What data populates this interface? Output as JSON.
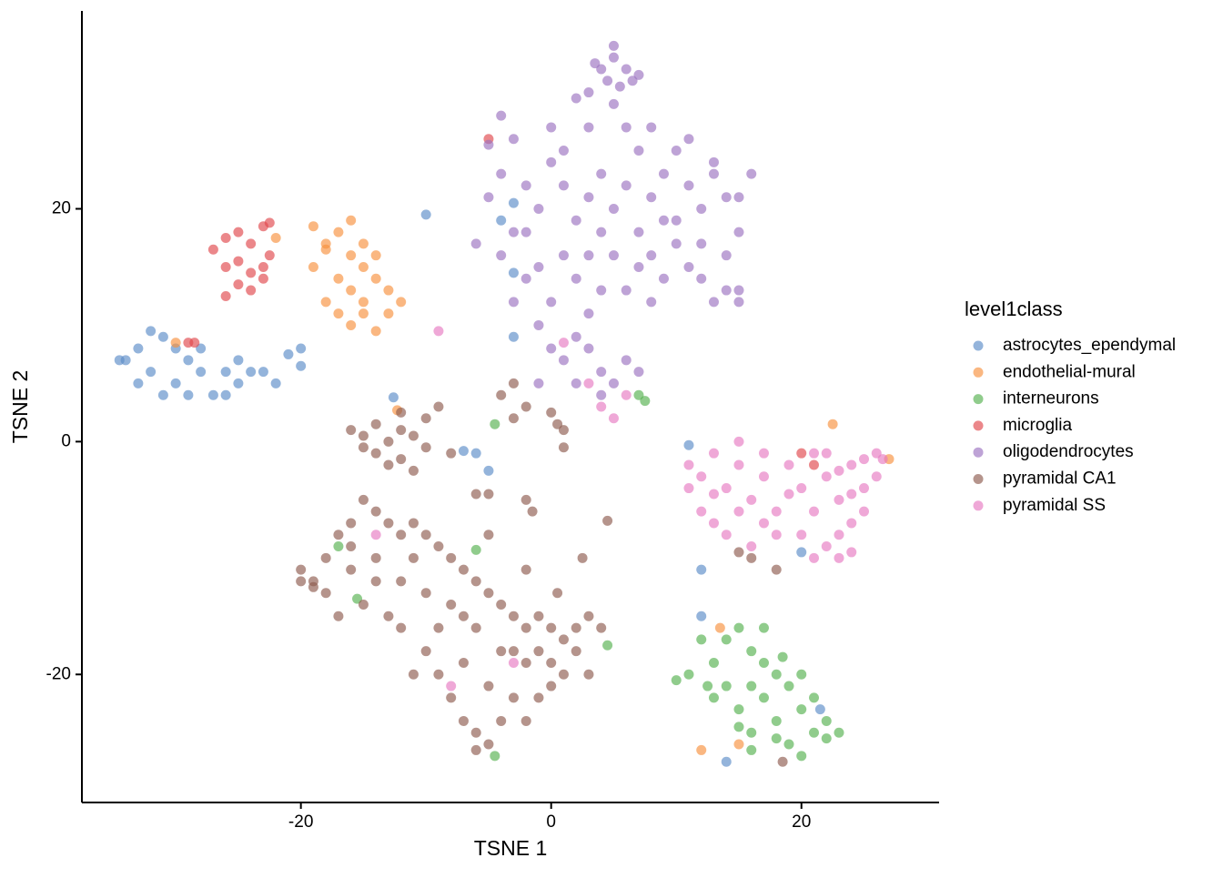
{
  "chart_data": {
    "type": "scatter",
    "xlabel": "TSNE 1",
    "ylabel": "TSNE 2",
    "legend_title": "level1class",
    "legend": "right",
    "grid": false,
    "xlim": [
      -37.5,
      31
    ],
    "ylim": [
      -31,
      37
    ],
    "xticks": [
      -20,
      0,
      20
    ],
    "yticks": [
      -20,
      0,
      20
    ],
    "series": [
      {
        "name": "astrocytes_ependymal",
        "color": "#5b8cc8",
        "x": [
          -34,
          -33,
          -32,
          -31,
          -30,
          -29,
          -28,
          -27,
          -26,
          -25,
          -33,
          -31,
          -30,
          -29,
          -28,
          -26,
          -24,
          -23,
          -25,
          -32,
          -34.5,
          -22,
          -20,
          -21,
          -20,
          -12.6,
          -10,
          -4,
          -3,
          -3,
          -3,
          -7,
          -5,
          -6,
          12,
          11,
          20,
          14,
          21.5,
          12
        ],
        "values": [
          7,
          8,
          6,
          9,
          5,
          7,
          6,
          4,
          6,
          5,
          5,
          4,
          8,
          4,
          8,
          4,
          6,
          6,
          7,
          9.5,
          7,
          5,
          8,
          7.5,
          6.5,
          3.8,
          19.5,
          19,
          20.5,
          14.5,
          9,
          -0.8,
          -2.5,
          -1,
          -11,
          -0.3,
          -9.5,
          -27.5,
          -23,
          -15
        ]
      },
      {
        "name": "endothelial-mural",
        "color": "#f7913d",
        "x": [
          -18,
          -17,
          -16,
          -15,
          -19,
          -17,
          -16,
          -15,
          -14,
          -13,
          -14,
          -18,
          -17,
          -16,
          -15,
          -13,
          -12,
          -16,
          -18,
          -22,
          -14,
          -30,
          -12.3,
          22.5,
          27,
          13.5,
          15,
          12,
          -19,
          -15
        ],
        "values": [
          17,
          18,
          19,
          17,
          15,
          14,
          13,
          15,
          14,
          13,
          16,
          12,
          11,
          10,
          12,
          11,
          12,
          16,
          16.5,
          17.5,
          9.5,
          8.5,
          2.7,
          1.5,
          -1.5,
          -16,
          -26,
          -26.5,
          18.5,
          11
        ]
      },
      {
        "name": "interneurons",
        "color": "#55b04f",
        "x": [
          12,
          13,
          14,
          15,
          16,
          17,
          18,
          19,
          20,
          21,
          22,
          14,
          15,
          16,
          17,
          18,
          19,
          20,
          21,
          11,
          10,
          13,
          15,
          16,
          18,
          20,
          22,
          17,
          18.5,
          23,
          12.5,
          16,
          7,
          7.5,
          -4.5,
          -4.5,
          -17,
          -6,
          4.5,
          -15.5
        ],
        "values": [
          -17,
          -19,
          -21,
          -23,
          -25,
          -22,
          -24,
          -26,
          -23,
          -25,
          -24,
          -17,
          -16,
          -18,
          -19,
          -20,
          -21,
          -20,
          -22,
          -20,
          -20.5,
          -22,
          -24.5,
          -26.5,
          -25.5,
          -27,
          -25.5,
          -16,
          -18.5,
          -25,
          -21,
          -21,
          4,
          3.5,
          1.5,
          -27,
          -9,
          -9.3,
          -17.5,
          -13.5
        ]
      },
      {
        "name": "microglia",
        "color": "#e0474c",
        "x": [
          -27,
          -26,
          -25,
          -24,
          -23,
          -22.5,
          -25,
          -24,
          -23,
          -26,
          -25,
          -24,
          -26,
          -23,
          -22.5,
          -29,
          -5,
          20,
          21,
          -28.5
        ],
        "values": [
          16.5,
          17.5,
          18,
          17,
          18.5,
          18.8,
          15.5,
          14.5,
          15,
          15,
          13.5,
          13,
          12.5,
          14,
          16,
          8.5,
          26,
          -1,
          -2,
          8.5
        ]
      },
      {
        "name": "oligodendrocytes",
        "color": "#9b72c0",
        "x": [
          4,
          5,
          6,
          4.5,
          5.5,
          3.5,
          6.5,
          5,
          3,
          7,
          5,
          -6,
          -5,
          -4,
          -3,
          -2,
          -1,
          0,
          1,
          2,
          3,
          4,
          5,
          6,
          7,
          8,
          9,
          10,
          11,
          12,
          13,
          14,
          15,
          -4,
          -2,
          0,
          1,
          2,
          3,
          4,
          5,
          6,
          7,
          8,
          9,
          10,
          11,
          12,
          13,
          14,
          15,
          14,
          -3,
          -1,
          0,
          1,
          2,
          3,
          4,
          5,
          6,
          7,
          2,
          4,
          -1,
          0,
          1,
          -3,
          -5,
          -4,
          3,
          2,
          8,
          10,
          7,
          13,
          16,
          15,
          11,
          9,
          4,
          -2,
          6,
          8,
          12,
          15,
          -1,
          3
        ],
        "values": [
          32,
          33,
          32,
          31,
          30.5,
          32.5,
          31,
          34,
          30,
          31.5,
          29,
          17,
          21,
          23,
          18,
          22,
          20,
          24,
          22,
          19,
          21,
          23,
          20,
          22,
          18,
          21,
          23,
          19,
          22,
          20,
          23,
          21,
          18,
          16,
          14,
          12,
          16,
          14,
          11,
          13,
          16,
          13,
          15,
          12,
          14,
          17,
          15,
          14,
          12,
          13,
          13,
          16,
          12,
          10,
          8,
          7,
          9,
          8,
          6,
          5,
          7,
          6,
          5,
          4,
          5,
          27,
          25,
          26,
          25.5,
          28,
          27,
          29.5,
          27,
          25,
          25,
          24,
          23,
          21,
          26,
          19,
          18,
          18,
          27,
          16,
          17,
          12,
          15,
          16
        ]
      },
      {
        "name": "pyramidal CA1",
        "color": "#8d5b4f",
        "x": [
          -16,
          -15,
          -14,
          -13,
          -12,
          -11,
          -10,
          -9,
          -14,
          -13,
          -12,
          -11,
          -12,
          -10,
          -8,
          -15,
          -4,
          -3,
          -2,
          -3,
          1,
          0.5,
          0,
          1,
          -5,
          -2,
          -1.5,
          -6,
          4.5,
          2.5,
          -20,
          -19,
          -18,
          -17,
          -16,
          -15,
          -14,
          -13,
          -12,
          -11,
          -10,
          -9,
          -8,
          -7,
          -6,
          -5,
          -4,
          -3,
          -2,
          -1,
          0,
          1,
          2,
          3,
          4,
          -18,
          -16,
          -14,
          -12,
          -10,
          -8,
          -6,
          -4,
          -2,
          0,
          2,
          3,
          -12,
          -10,
          -9,
          -8,
          -7,
          -6,
          -5,
          -4,
          -3,
          -2,
          -1,
          0,
          -11,
          -7,
          -5,
          -3,
          -1,
          1,
          -15,
          -13,
          -17,
          -14,
          -9,
          -7,
          -11,
          -16,
          -20,
          -6,
          16,
          18,
          15,
          18.5,
          -19,
          -5,
          0.5,
          -2
        ],
        "values": [
          1,
          0.5,
          1.5,
          0,
          1,
          0.5,
          2,
          3,
          -1,
          -2,
          -1.5,
          -2.5,
          2.5,
          -0.5,
          -1,
          -0.5,
          4,
          5,
          3,
          2,
          1,
          1.5,
          2.5,
          -0.5,
          -4.5,
          -5,
          -6,
          -4.5,
          -6.8,
          -10,
          -11,
          -12,
          -10,
          -8,
          -7,
          -5,
          -6,
          -7,
          -8,
          -7,
          -8,
          -9,
          -10,
          -11,
          -12,
          -13,
          -14,
          -15,
          -16,
          -15,
          -16,
          -17,
          -16,
          -15,
          -16,
          -13,
          -11,
          -10,
          -12,
          -13,
          -14,
          -16,
          -18,
          -19,
          -19,
          -18,
          -20,
          -16,
          -18,
          -20,
          -22,
          -24,
          -25,
          -26,
          -24,
          -22,
          -24,
          -22,
          -21,
          -20,
          -19,
          -21,
          -18,
          -18,
          -20,
          -14,
          -15,
          -15,
          -12,
          -16,
          -15,
          -10,
          -9,
          -12,
          -26.5,
          -10,
          -11,
          -9.5,
          -27.5,
          -12.5,
          -8,
          -13,
          -11
        ]
      },
      {
        "name": "pyramidal SS",
        "color": "#e67ac2",
        "x": [
          11,
          12,
          13,
          14,
          15,
          16,
          17,
          18,
          19,
          20,
          21,
          22,
          23,
          24,
          25,
          26,
          12,
          13,
          14,
          15,
          16,
          17,
          18,
          20,
          21,
          22,
          23,
          24,
          25,
          26,
          22,
          23,
          24,
          25,
          19,
          15,
          17,
          13,
          11,
          21,
          23,
          24,
          -9,
          1,
          3,
          4,
          5,
          6,
          -3,
          -8,
          -14,
          26.5
        ],
        "values": [
          -2,
          -3,
          -1,
          -4,
          -2,
          -5,
          -3,
          -6,
          -2,
          -4,
          -1,
          -3,
          -5,
          -2,
          -4,
          -1,
          -6,
          -7,
          -8,
          -6,
          -9,
          -7,
          -8,
          -8,
          -6,
          -9,
          -8,
          -7,
          -6,
          -3,
          -1,
          -2.5,
          -4.5,
          -1.5,
          -4.5,
          0,
          -1,
          -4.5,
          -4,
          -10,
          -10,
          -9.5,
          9.5,
          8.5,
          5,
          3,
          2,
          4,
          -19,
          -21,
          -8,
          -1.5
        ]
      }
    ]
  }
}
